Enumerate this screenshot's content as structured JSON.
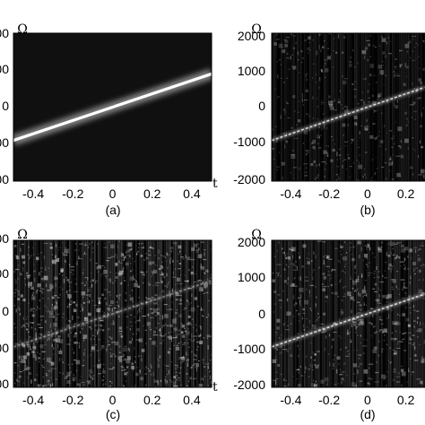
{
  "chart_data": [
    {
      "type": "heatmap",
      "panel_label": "(a)",
      "xlabel": "t",
      "ylabel": "Ω",
      "xlim": [
        -0.5,
        0.5
      ],
      "ylim": [
        -2000,
        2000
      ],
      "x_ticks": [
        "-0.4",
        "-0.2",
        "0",
        "0.2",
        "0.4"
      ],
      "y_ticks": [
        "00",
        "00",
        "0",
        "00",
        "00"
      ],
      "ridge": {
        "x": [
          -0.5,
          0.5
        ],
        "y": [
          -900,
          900
        ]
      },
      "noise_level": 0.05,
      "grid": false
    },
    {
      "type": "heatmap",
      "panel_label": "(b)",
      "xlabel": "",
      "ylabel": "Ω",
      "xlim": [
        -0.5,
        0.3
      ],
      "ylim": [
        -2000,
        2000
      ],
      "x_ticks": [
        "-0.4",
        "-0.2",
        "0",
        "0.2"
      ],
      "y_ticks": [
        "2000",
        "1000",
        "0",
        "-1000",
        "-2000"
      ],
      "ridge": {
        "x": [
          -0.5,
          0.3
        ],
        "y": [
          -900,
          540
        ]
      },
      "noise_level": 0.35,
      "grid": false
    },
    {
      "type": "heatmap",
      "panel_label": "(c)",
      "xlabel": "t",
      "ylabel": "Ω",
      "xlim": [
        -0.5,
        0.5
      ],
      "ylim": [
        -2000,
        2000
      ],
      "x_ticks": [
        "-0.4",
        "-0.2",
        "0",
        "0.2",
        "0.4"
      ],
      "y_ticks": [
        "00",
        "00",
        "0",
        "00",
        "00"
      ],
      "ridge": {
        "x": [
          -0.5,
          0.5
        ],
        "y": [
          -900,
          900
        ]
      },
      "noise_level": 0.7,
      "grid": false
    },
    {
      "type": "heatmap",
      "panel_label": "(d)",
      "xlabel": "",
      "ylabel": "Ω",
      "xlim": [
        -0.5,
        0.3
      ],
      "ylim": [
        -2000,
        2000
      ],
      "x_ticks": [
        "-0.4",
        "-0.2",
        "0",
        "0.2"
      ],
      "y_ticks": [
        "2000",
        "1000",
        "0",
        "-1000",
        "-2000"
      ],
      "ridge": {
        "x": [
          -0.5,
          0.3
        ],
        "y": [
          -900,
          540
        ]
      },
      "noise_level": 0.55,
      "grid": false
    }
  ]
}
